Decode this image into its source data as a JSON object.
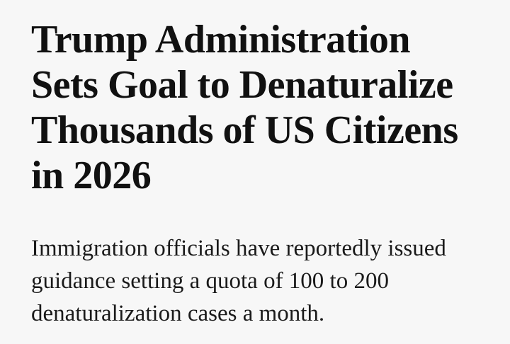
{
  "article": {
    "headline": "Trump Administration Sets Goal to Denaturalize Thousands of US Citizens in 2026",
    "dek": "Immigration officials have reportedly issued guidance setting a quota of 100 to 200 denaturalization cases a month."
  }
}
